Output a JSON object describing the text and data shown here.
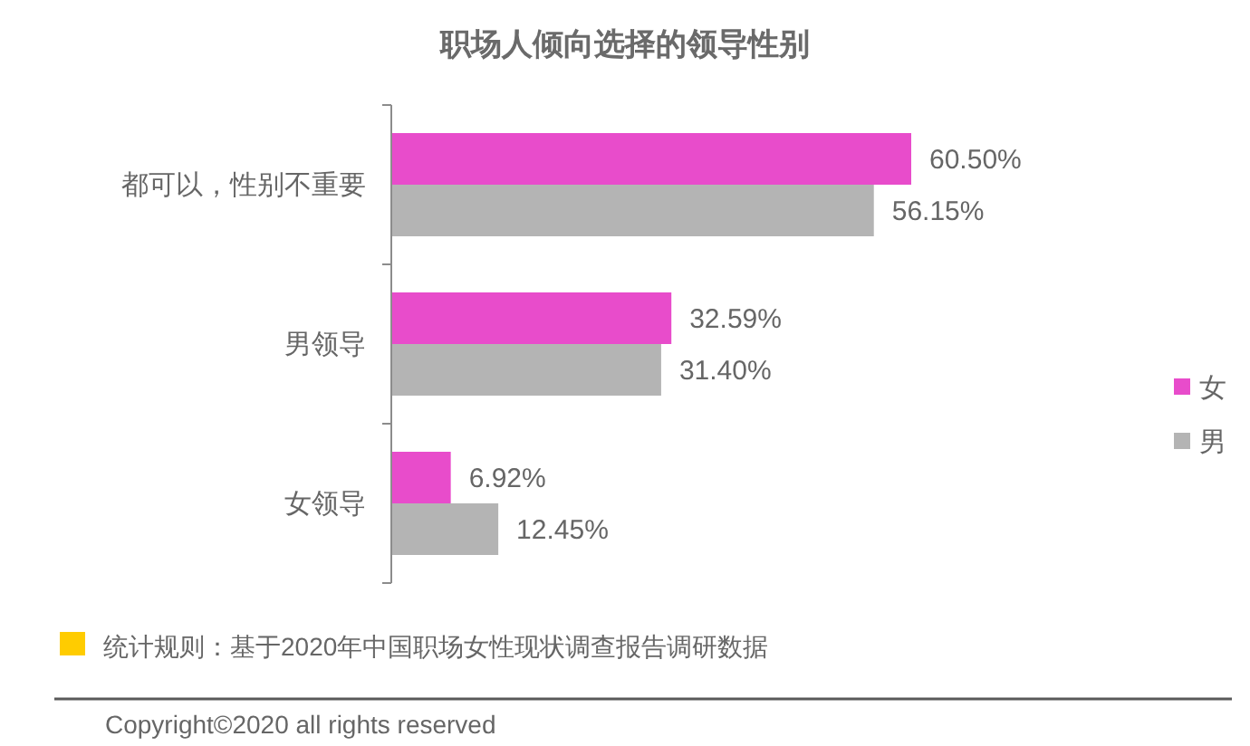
{
  "chart_data": {
    "type": "bar",
    "orientation": "horizontal",
    "title": "职场人倾向选择的领导性别",
    "categories": [
      "都可以，性别不重要",
      "男领导",
      "女领导"
    ],
    "series": [
      {
        "name": "女",
        "color": "#e84ccb",
        "values": [
          60.5,
          32.59,
          6.92
        ],
        "value_labels": [
          "60.50%",
          "32.59%",
          "6.92%"
        ]
      },
      {
        "name": "男",
        "color": "#b4b4b4",
        "values": [
          56.15,
          31.4,
          12.45
        ],
        "value_labels": [
          "56.15%",
          "31.40%",
          "12.45%"
        ]
      }
    ],
    "legend": "right",
    "annotations": [
      "统计规则：基于2020年中国职场女性现状调查报告调研数据",
      "Copyright©2020 all rights reserved"
    ]
  }
}
